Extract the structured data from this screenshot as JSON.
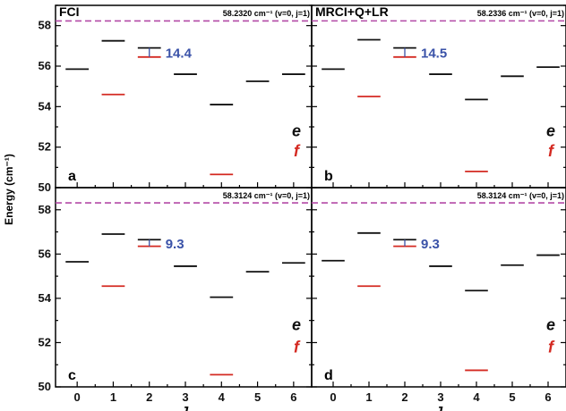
{
  "colors": {
    "e_level": "#111111",
    "f_level": "#d42a22",
    "reference_line": "#b34aa6",
    "split_label": "#3a52a8",
    "axis": "#000000"
  },
  "figure": {
    "y_axis_label": "Energy (cm⁻¹)",
    "x_axis_label": "J",
    "parity_e": "e",
    "parity_f": "f"
  },
  "chart_data": [
    {
      "panel": "a",
      "type": "level-diagram",
      "title": "FCI",
      "reference_label": "58.2320 cm⁻¹ (v=0, j=1)",
      "reference_energy": 58.232,
      "split_label": "14.4",
      "x": [
        0,
        1,
        2,
        3,
        4,
        5,
        6
      ],
      "xlim": [
        -0.6,
        6.5
      ],
      "ylim": [
        50,
        59
      ],
      "yticks": [
        50,
        52,
        54,
        56,
        58
      ],
      "series": [
        {
          "name": "e",
          "values": [
            55.85,
            57.25,
            56.9,
            55.6,
            54.1,
            55.25,
            55.6
          ]
        },
        {
          "name": "f",
          "values": [
            null,
            54.6,
            56.45,
            null,
            50.65,
            null,
            null
          ]
        }
      ]
    },
    {
      "panel": "b",
      "type": "level-diagram",
      "title": "MRCI+Q+LR",
      "reference_label": "58.2336 cm⁻¹ (v=0, j=1)",
      "reference_energy": 58.2336,
      "split_label": "14.5",
      "x": [
        0,
        1,
        2,
        3,
        4,
        5,
        6
      ],
      "xlim": [
        -0.6,
        6.5
      ],
      "ylim": [
        50,
        59
      ],
      "yticks": [
        50,
        52,
        54,
        56,
        58
      ],
      "series": [
        {
          "name": "e",
          "values": [
            55.85,
            57.3,
            56.9,
            55.6,
            54.35,
            55.5,
            55.95
          ]
        },
        {
          "name": "f",
          "values": [
            null,
            54.5,
            56.45,
            null,
            50.8,
            null,
            null
          ]
        }
      ]
    },
    {
      "panel": "c",
      "type": "level-diagram",
      "title": "",
      "reference_label": "58.3124 cm⁻¹ (v=0, j=1)",
      "reference_energy": 58.3124,
      "split_label": "9.3",
      "x": [
        0,
        1,
        2,
        3,
        4,
        5,
        6
      ],
      "xlim": [
        -0.6,
        6.5
      ],
      "ylim": [
        50,
        59
      ],
      "yticks": [
        50,
        52,
        54,
        56,
        58
      ],
      "series": [
        {
          "name": "e",
          "values": [
            55.65,
            56.9,
            56.65,
            55.45,
            54.05,
            55.2,
            55.6
          ]
        },
        {
          "name": "f",
          "values": [
            null,
            54.55,
            56.35,
            null,
            50.55,
            null,
            null
          ]
        }
      ]
    },
    {
      "panel": "d",
      "type": "level-diagram",
      "title": "",
      "reference_label": "58.3124 cm⁻¹ (v=0, j=1)",
      "reference_energy": 58.3124,
      "split_label": "9.3",
      "x": [
        0,
        1,
        2,
        3,
        4,
        5,
        6
      ],
      "xlim": [
        -0.6,
        6.5
      ],
      "ylim": [
        50,
        59
      ],
      "yticks": [
        50,
        52,
        54,
        56,
        58
      ],
      "series": [
        {
          "name": "e",
          "values": [
            55.7,
            56.95,
            56.65,
            55.45,
            54.35,
            55.5,
            55.95
          ]
        },
        {
          "name": "f",
          "values": [
            null,
            54.55,
            56.35,
            null,
            50.75,
            null,
            null
          ]
        }
      ]
    }
  ]
}
